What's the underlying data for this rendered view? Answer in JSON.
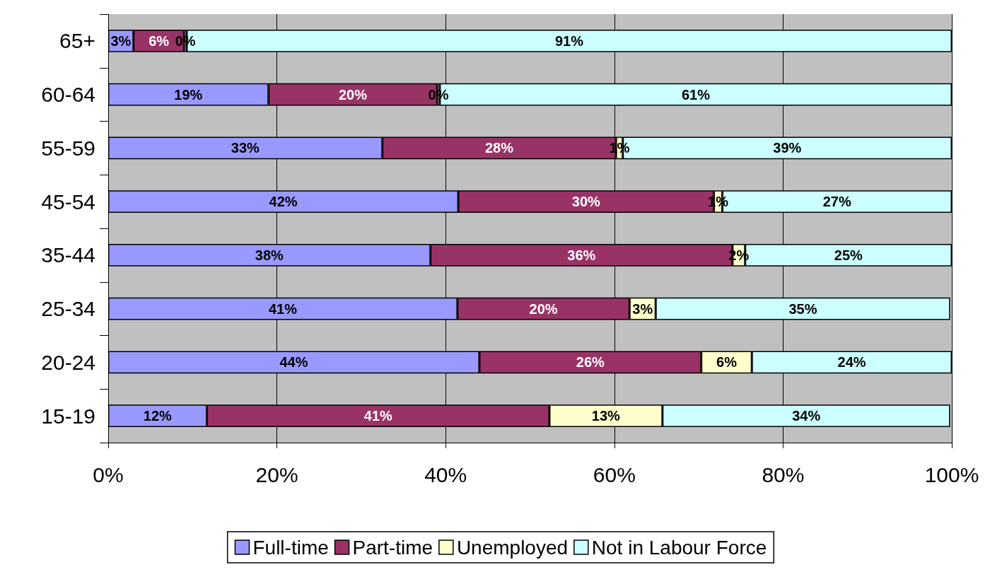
{
  "chart_data": {
    "type": "bar",
    "orientation": "horizontal",
    "stacked": true,
    "categories": [
      "65+",
      "60-64",
      "55-59",
      "45-54",
      "35-44",
      "25-34",
      "20-24",
      "15-19"
    ],
    "series": [
      {
        "name": "Full-time",
        "color": "#9999ff",
        "values": [
          3,
          19,
          32.5,
          41.5,
          38.2,
          41.4,
          44,
          11.7
        ],
        "value_labels": [
          "3%",
          "19%",
          "33%",
          "42%",
          "38%",
          "41%",
          "44%",
          "12%"
        ]
      },
      {
        "name": "Part-time",
        "color": "#993366",
        "values": [
          6,
          20,
          27.7,
          30.3,
          35.8,
          20.4,
          26.3,
          40.6
        ],
        "value_labels": [
          "6%",
          "20%",
          "28%",
          "30%",
          "36%",
          "20%",
          "26%",
          "41%"
        ]
      },
      {
        "name": "Unemployed",
        "color": "#ffffcc",
        "values": [
          0.3,
          0.3,
          0.8,
          1,
          1.5,
          3.1,
          6,
          13.4
        ],
        "value_labels": [
          "0%",
          "0%",
          "1%",
          "1%",
          "2%",
          "3%",
          "6%",
          "13%"
        ]
      },
      {
        "name": "Not in Labour Force",
        "color": "#ccffff",
        "values": [
          90.7,
          60.7,
          39,
          27.2,
          24.5,
          34.9,
          23.7,
          34.1
        ],
        "value_labels": [
          "91%",
          "61%",
          "39%",
          "27%",
          "25%",
          "35%",
          "24%",
          "34%"
        ]
      }
    ],
    "xlim": [
      0,
      100
    ],
    "xticks": [
      {
        "value": 0,
        "label": "0%"
      },
      {
        "value": 20,
        "label": "20%"
      },
      {
        "value": 40,
        "label": "40%"
      },
      {
        "value": 60,
        "label": "60%"
      },
      {
        "value": 80,
        "label": "80%"
      },
      {
        "value": 100,
        "label": "100%"
      }
    ],
    "grid": "x",
    "legend": "bottom"
  }
}
